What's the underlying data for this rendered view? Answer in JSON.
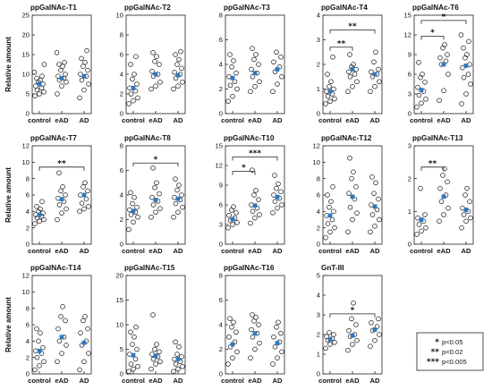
{
  "figure": {
    "ylabel": "Relative amount",
    "mean_color": "#2e78bf",
    "point_color": "#222222",
    "legend": [
      {
        "stars": "*",
        "text": "p<0.05"
      },
      {
        "stars": "**",
        "text": "p<0.02"
      },
      {
        "stars": "***",
        "text": "p<0.005"
      }
    ]
  },
  "chart_data": [
    {
      "type": "scatter",
      "title": "ppGalNAc-T1",
      "categories": [
        "control",
        "eAD",
        "AD"
      ],
      "ylim": [
        0,
        25
      ],
      "yticks": [
        0,
        5,
        10,
        15,
        20,
        25
      ],
      "series": [
        {
          "values": [
            4.5,
            5,
            5.5,
            6,
            6.5,
            7,
            7.5,
            8,
            8.5,
            9,
            9.5,
            10.5,
            12.5
          ]
        },
        {
          "values": [
            5,
            7,
            8,
            8.5,
            9,
            9.5,
            10,
            11,
            12,
            12.5,
            13,
            15.5
          ]
        },
        {
          "values": [
            4,
            6,
            7.5,
            8.5,
            9.5,
            10,
            11,
            12,
            13,
            14,
            16
          ]
        }
      ],
      "means": [
        7.5,
        9,
        9.5
      ],
      "sig": []
    },
    {
      "type": "scatter",
      "title": "ppGalNAc-T2",
      "categories": [
        "control",
        "eAD",
        "AD"
      ],
      "ylim": [
        0,
        10
      ],
      "yticks": [
        0,
        2,
        4,
        6,
        8,
        10
      ],
      "series": [
        {
          "values": [
            1,
            1.3,
            1.6,
            2,
            2.3,
            2.6,
            3,
            3.5,
            4,
            5,
            5.8
          ]
        },
        {
          "values": [
            2.5,
            2.8,
            3.2,
            3.8,
            4,
            4.3,
            5,
            5.3,
            5.8,
            6.2
          ]
        },
        {
          "values": [
            2.5,
            2.8,
            3.2,
            3.6,
            4,
            4.2,
            4.6,
            5,
            5.5,
            6,
            6.3
          ]
        }
      ],
      "means": [
        2.6,
        4,
        3.9
      ],
      "sig": []
    },
    {
      "type": "scatter",
      "title": "ppGalNAc-T3",
      "categories": [
        "control",
        "eAD",
        "AD"
      ],
      "ylim": [
        0,
        8
      ],
      "yticks": [
        0,
        2,
        4,
        6,
        8
      ],
      "series": [
        {
          "values": [
            1,
            1.4,
            2,
            2.3,
            2.6,
            3,
            3.3,
            3.8,
            4.3,
            4.8
          ]
        },
        {
          "values": [
            1.8,
            2.2,
            2.6,
            3,
            3.3,
            3.6,
            4,
            4.4,
            4.8,
            5.3
          ]
        },
        {
          "values": [
            1.8,
            2.4,
            3,
            3.4,
            3.8,
            4.2,
            4.6,
            5
          ]
        }
      ],
      "means": [
        2.9,
        3.3,
        3.6
      ],
      "sig": []
    },
    {
      "type": "scatter",
      "title": "ppGalNAc-T4",
      "categories": [
        "control",
        "eAD",
        "AD"
      ],
      "ylim": [
        0,
        4
      ],
      "yticks": [
        0,
        1,
        2,
        3,
        4
      ],
      "series": [
        {
          "values": [
            0.4,
            0.5,
            0.6,
            0.7,
            0.8,
            0.9,
            1,
            1.1,
            1.3,
            1.6,
            2.3
          ]
        },
        {
          "values": [
            0.9,
            1.1,
            1.3,
            1.5,
            1.6,
            1.7,
            1.8,
            1.9,
            2,
            2.4
          ]
        },
        {
          "values": [
            0.9,
            1.1,
            1.3,
            1.5,
            1.6,
            1.7,
            1.8,
            2.1,
            2.5
          ]
        }
      ],
      "means": [
        0.9,
        1.8,
        1.6
      ],
      "sig": [
        {
          "from": 0,
          "to": 1,
          "y": 2.7,
          "label": "**"
        },
        {
          "from": 0,
          "to": 2,
          "y": 3.4,
          "label": "**"
        }
      ]
    },
    {
      "type": "scatter",
      "title": "ppGalNAc-T6",
      "categories": [
        "control",
        "eAD",
        "AD"
      ],
      "ylim": [
        0,
        15
      ],
      "yticks": [
        0,
        3,
        6,
        9,
        12,
        15
      ],
      "series": [
        {
          "values": [
            1,
            1.6,
            2.2,
            2.8,
            3.4,
            4,
            4.8,
            5.5,
            6,
            7.8
          ]
        },
        {
          "values": [
            2,
            3.5,
            6,
            7.5,
            8,
            8.5,
            9,
            10,
            10.5
          ]
        },
        {
          "values": [
            1.5,
            3,
            4.5,
            5.5,
            6,
            7,
            7.5,
            8.5,
            9,
            10,
            11,
            12
          ]
        }
      ],
      "means": [
        3.6,
        7.5,
        7.3
      ],
      "sig": [
        {
          "from": 0,
          "to": 1,
          "y": 11.8,
          "label": "*"
        },
        {
          "from": 0,
          "to": 2,
          "y": 14.2,
          "label": "*"
        }
      ]
    },
    {
      "type": "scatter",
      "title": "ppGalNAc-T7",
      "categories": [
        "control",
        "eAD",
        "AD"
      ],
      "ylim": [
        0,
        12
      ],
      "yticks": [
        0,
        2,
        4,
        6,
        8,
        10,
        12
      ],
      "series": [
        {
          "values": [
            2.5,
            2.8,
            3,
            3.2,
            3.4,
            3.6,
            3.8,
            4,
            4.3,
            4.6,
            5.2
          ]
        },
        {
          "values": [
            3,
            3.8,
            4.3,
            4.8,
            5.2,
            5.6,
            6,
            6.5,
            7,
            8.7
          ]
        },
        {
          "values": [
            4,
            4.3,
            4.6,
            5,
            5.5,
            6,
            6.5,
            7,
            7.5
          ]
        }
      ],
      "means": [
        3.6,
        5.5,
        6
      ],
      "sig": [
        {
          "from": 0,
          "to": 2,
          "y": 9.4,
          "label": "**"
        }
      ]
    },
    {
      "type": "scatter",
      "title": "ppGalNAc-T8",
      "categories": [
        "control",
        "eAD",
        "AD"
      ],
      "ylim": [
        0,
        8
      ],
      "yticks": [
        0,
        2,
        4,
        6,
        8
      ],
      "series": [
        {
          "values": [
            1.2,
            1.8,
            2.2,
            2.4,
            2.6,
            2.8,
            3,
            3.3,
            3.8,
            4.2
          ]
        },
        {
          "values": [
            2.2,
            2.6,
            2.9,
            3.2,
            3.5,
            3.8,
            4.1,
            4.6,
            5,
            6.2
          ]
        },
        {
          "values": [
            2.2,
            2.6,
            3,
            3.3,
            3.6,
            3.8,
            4,
            4.4,
            4.8,
            5.3
          ]
        }
      ],
      "means": [
        2.7,
        3.6,
        3.7
      ],
      "sig": [
        {
          "from": 0,
          "to": 2,
          "y": 6.6,
          "label": "*"
        }
      ]
    },
    {
      "type": "scatter",
      "title": "ppGalNAc-T10",
      "categories": [
        "control",
        "eAD",
        "AD"
      ],
      "ylim": [
        0,
        15
      ],
      "yticks": [
        0,
        3,
        6,
        9,
        12,
        15
      ],
      "series": [
        {
          "values": [
            2.5,
            3,
            3.3,
            3.6,
            4,
            4.4,
            4.8,
            5.2,
            5.7
          ]
        },
        {
          "values": [
            3.2,
            4,
            4.5,
            5,
            5.5,
            6,
            6.8,
            7.5,
            8.2,
            11.3
          ]
        },
        {
          "values": [
            4.8,
            5.5,
            6,
            6.5,
            7,
            7.5,
            8,
            8.5,
            9.2,
            10.5
          ]
        }
      ],
      "means": [
        3.8,
        5.9,
        7.2
      ],
      "sig": [
        {
          "from": 0,
          "to": 1,
          "y": 11.1,
          "label": "*"
        },
        {
          "from": 0,
          "to": 2,
          "y": 13.3,
          "label": "***"
        }
      ]
    },
    {
      "type": "scatter",
      "title": "ppGalNAc-T12",
      "categories": [
        "control",
        "eAD",
        "AD"
      ],
      "ylim": [
        0,
        12
      ],
      "yticks": [
        0,
        2,
        4,
        6,
        8,
        10,
        12
      ],
      "series": [
        {
          "values": [
            0.8,
            1.5,
            2,
            2.5,
            3,
            3.5,
            4,
            4.5,
            5.2,
            6,
            7
          ]
        },
        {
          "values": [
            1.5,
            3,
            3.8,
            4.5,
            5.5,
            6.2,
            7,
            8,
            8.8,
            10.5
          ]
        },
        {
          "values": [
            1.5,
            2.2,
            3,
            3.6,
            4.2,
            4.8,
            5.5,
            6.2,
            7.5,
            8.2
          ]
        }
      ],
      "means": [
        3.5,
        5.8,
        4.6
      ],
      "sig": []
    },
    {
      "type": "scatter",
      "title": "ppGalNAc-T13",
      "categories": [
        "control",
        "eAD",
        "AD"
      ],
      "ylim": [
        0,
        3
      ],
      "yticks": [
        0,
        1,
        2,
        3
      ],
      "series": [
        {
          "values": [
            0.3,
            0.4,
            0.5,
            0.6,
            0.7,
            0.8,
            0.9,
            1.7
          ]
        },
        {
          "values": [
            0.7,
            0.9,
            1.1,
            1.3,
            1.5,
            1.7,
            1.9,
            2.1,
            2.3
          ]
        },
        {
          "values": [
            0.5,
            0.7,
            0.8,
            0.9,
            1,
            1.1,
            1.3,
            1.5,
            1.7
          ]
        }
      ],
      "means": [
        0.75,
        1.45,
        1.05
      ],
      "sig": [
        {
          "from": 0,
          "to": 1,
          "y": 2.35,
          "label": "**"
        }
      ]
    },
    {
      "type": "scatter",
      "title": "ppGalNAc-T14",
      "categories": [
        "control",
        "eAD",
        "AD"
      ],
      "ylim": [
        0,
        12
      ],
      "yticks": [
        0,
        2,
        4,
        6,
        8,
        10,
        12
      ],
      "series": [
        {
          "values": [
            0.5,
            1,
            1.5,
            2,
            2.5,
            2.8,
            3.2,
            4,
            5,
            5.5
          ]
        },
        {
          "values": [
            1.5,
            2.5,
            3.5,
            4,
            4.5,
            5.5,
            6.5,
            7,
            8.2
          ]
        },
        {
          "values": [
            0.5,
            1.5,
            2.5,
            3.5,
            4,
            5,
            5.5,
            6.5,
            7
          ]
        }
      ],
      "means": [
        2.8,
        4.5,
        3.8
      ],
      "sig": []
    },
    {
      "type": "scatter",
      "title": "ppGalNAc-T15",
      "categories": [
        "control",
        "eAD",
        "AD"
      ],
      "ylim": [
        0,
        20
      ],
      "yticks": [
        0,
        5,
        10,
        15,
        20
      ],
      "series": [
        {
          "values": [
            0.5,
            1,
            1.5,
            2,
            3,
            4,
            5,
            6,
            7.5,
            8.5,
            9.5
          ]
        },
        {
          "values": [
            1,
            2,
            2.5,
            3,
            3.5,
            4,
            4.5,
            5,
            6,
            12
          ]
        },
        {
          "values": [
            0.5,
            1,
            1.5,
            2,
            2.5,
            3,
            3.5,
            4,
            5.5,
            6.5
          ]
        }
      ],
      "means": [
        3.8,
        3.7,
        3
      ],
      "sig": []
    },
    {
      "type": "scatter",
      "title": "ppGalNAc-T16",
      "categories": [
        "control",
        "eAD",
        "AD"
      ],
      "ylim": [
        0,
        8
      ],
      "yticks": [
        0,
        2,
        4,
        6,
        8
      ],
      "series": [
        {
          "values": [
            0.8,
            1.3,
            1.8,
            2.2,
            2.6,
            3,
            3.4,
            3.8,
            4.2,
            4.5
          ]
        },
        {
          "values": [
            1.3,
            2,
            2.5,
            3,
            3.3,
            3.6,
            4,
            4.3,
            4.6,
            4.8
          ]
        },
        {
          "values": [
            0.8,
            1.3,
            1.8,
            2.2,
            2.6,
            3,
            3.3,
            3.8,
            4.2
          ]
        }
      ],
      "means": [
        2.4,
        3.3,
        2.5
      ],
      "sig": []
    },
    {
      "type": "scatter",
      "title": "GnT-III",
      "categories": [
        "control",
        "eAD",
        "AD"
      ],
      "ylim": [
        0,
        5
      ],
      "yticks": [
        0,
        1,
        2,
        3,
        4,
        5
      ],
      "series": [
        {
          "values": [
            1.3,
            1.5,
            1.6,
            1.7,
            1.8,
            1.9,
            2,
            2.1
          ]
        },
        {
          "values": [
            1.2,
            1.5,
            1.7,
            1.9,
            2,
            2.2,
            2.5,
            2.8,
            3.6
          ]
        },
        {
          "values": [
            1.4,
            1.7,
            2,
            2.2,
            2.4,
            2.6,
            2.8
          ]
        }
      ],
      "means": [
        1.75,
        1.95,
        2.25
      ],
      "sig": [
        {
          "from": 0,
          "to": 2,
          "y": 3.05,
          "label": "*"
        }
      ]
    }
  ]
}
